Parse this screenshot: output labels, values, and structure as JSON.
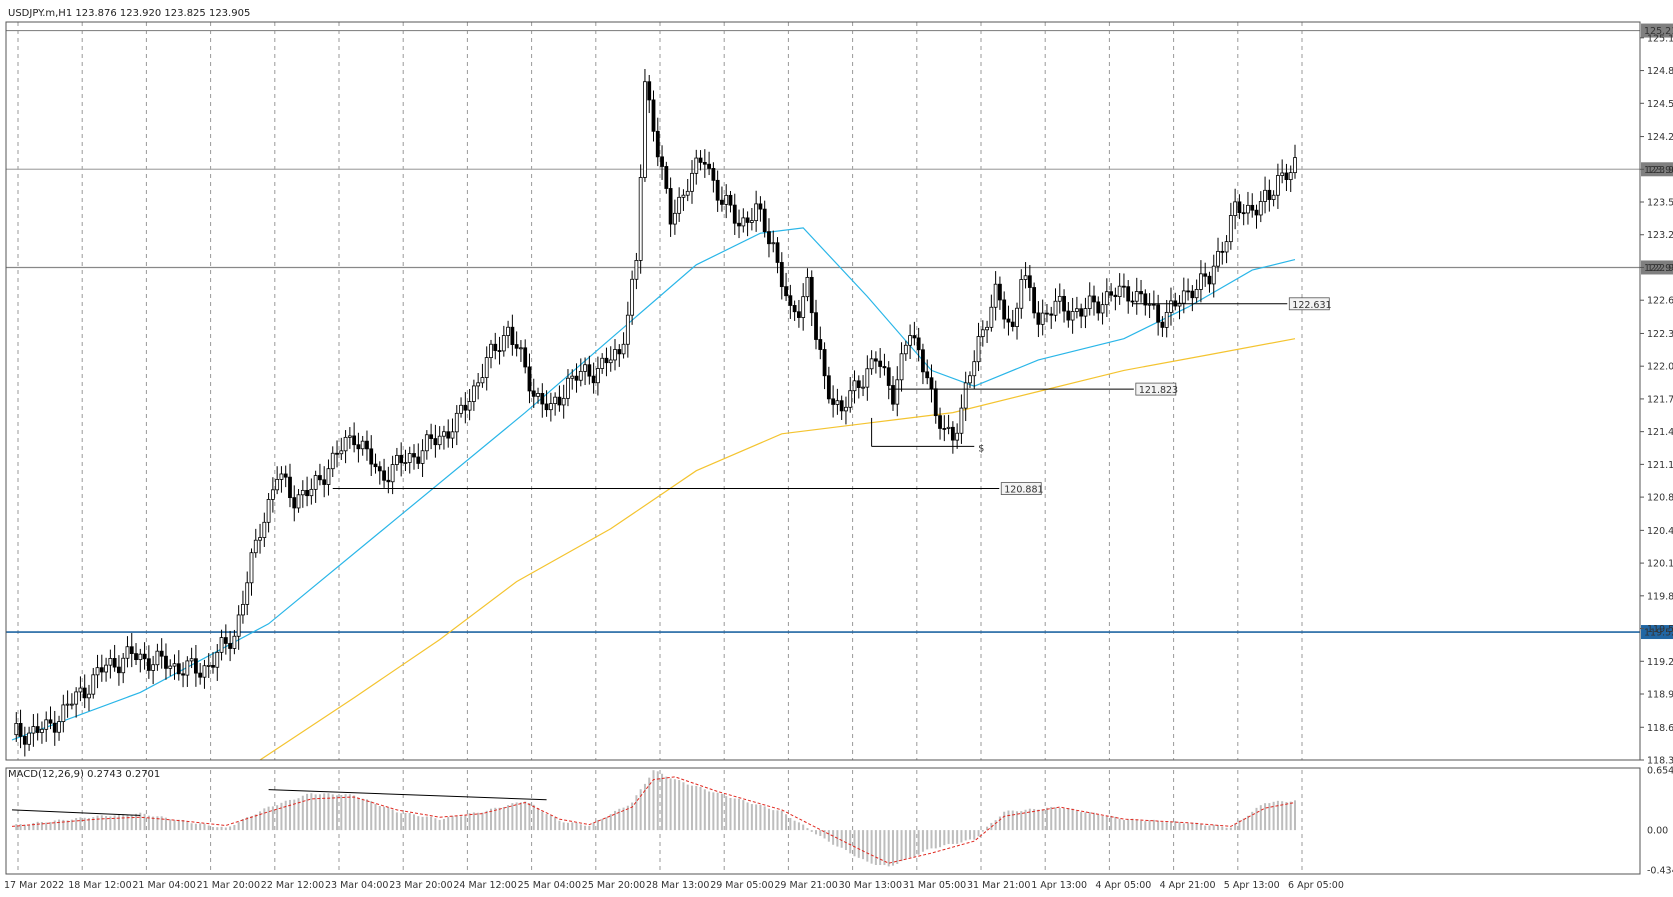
{
  "window": {
    "symbol_line": "USDJPY.m,H1  123.876 123.920 123.825 123.905"
  },
  "chart_data": {
    "type": "candlestick",
    "symbol": "USDJPY.m",
    "timeframe": "H1",
    "ohlc_header": {
      "open": 123.876,
      "high": 123.92,
      "low": 123.825,
      "close": 123.905
    },
    "ylim": [
      118.31,
      125.3
    ],
    "price_ticks": [
      "125.150",
      "124.840",
      "124.530",
      "124.215",
      "123.905",
      "123.595",
      "123.285",
      "122.975",
      "122.665",
      "122.350",
      "122.040",
      "121.730",
      "121.420",
      "121.110",
      "120.800",
      "120.485",
      "120.175",
      "119.865",
      "119.555",
      "119.245",
      "118.935",
      "118.620",
      "118.310"
    ],
    "time_labels": [
      "17 Mar 2022",
      "18 Mar 12:00",
      "21 Mar 04:00",
      "21 Mar 20:00",
      "22 Mar 12:00",
      "23 Mar 04:00",
      "23 Mar 20:00",
      "24 Mar 12:00",
      "25 Mar 04:00",
      "25 Mar 20:00",
      "28 Mar 13:00",
      "29 Mar 05:00",
      "29 Mar 21:00",
      "30 Mar 13:00",
      "31 Mar 05:00",
      "31 Mar 21:00",
      "1 Apr 13:00",
      "4 Apr 05:00",
      "4 Apr 21:00",
      "5 Apr 13:00",
      "6 Apr 05:00"
    ],
    "close_path": [
      [
        0,
        118.55
      ],
      [
        8,
        118.6
      ],
      [
        15,
        118.9
      ],
      [
        22,
        119.2
      ],
      [
        28,
        119.3
      ],
      [
        33,
        119.25
      ],
      [
        38,
        119.2
      ],
      [
        44,
        119.15
      ],
      [
        48,
        119.3
      ],
      [
        52,
        119.5
      ],
      [
        58,
        120.5
      ],
      [
        62,
        121.0
      ],
      [
        66,
        120.8
      ],
      [
        70,
        120.85
      ],
      [
        74,
        121.1
      ],
      [
        80,
        121.4
      ],
      [
        86,
        121.0
      ],
      [
        92,
        121.15
      ],
      [
        96,
        121.25
      ],
      [
        104,
        121.5
      ],
      [
        110,
        122.0
      ],
      [
        116,
        122.4
      ],
      [
        118,
        122.2
      ],
      [
        122,
        121.8
      ],
      [
        126,
        121.6
      ],
      [
        130,
        121.9
      ],
      [
        136,
        122.0
      ],
      [
        142,
        122.15
      ],
      [
        146,
        123.0
      ],
      [
        148,
        124.7
      ],
      [
        150,
        124.35
      ],
      [
        154,
        123.4
      ],
      [
        158,
        123.8
      ],
      [
        162,
        124.0
      ],
      [
        166,
        123.6
      ],
      [
        170,
        123.4
      ],
      [
        174,
        123.5
      ],
      [
        178,
        123.2
      ],
      [
        182,
        122.5
      ],
      [
        184,
        122.6
      ],
      [
        186,
        122.85
      ],
      [
        188,
        122.3
      ],
      [
        190,
        121.9
      ],
      [
        194,
        121.6
      ],
      [
        198,
        121.9
      ],
      [
        202,
        122.1
      ],
      [
        206,
        121.8
      ],
      [
        210,
        122.35
      ],
      [
        214,
        122.0
      ],
      [
        216,
        121.5
      ],
      [
        220,
        121.4
      ],
      [
        222,
        121.6
      ],
      [
        226,
        122.3
      ],
      [
        230,
        122.7
      ],
      [
        234,
        122.4
      ],
      [
        236,
        122.9
      ],
      [
        240,
        122.5
      ],
      [
        244,
        122.6
      ],
      [
        250,
        122.55
      ],
      [
        256,
        122.7
      ],
      [
        262,
        122.75
      ],
      [
        266,
        122.6
      ],
      [
        268,
        122.5
      ],
      [
        272,
        122.6
      ],
      [
        276,
        122.8
      ],
      [
        280,
        122.85
      ],
      [
        282,
        123.1
      ],
      [
        286,
        123.5
      ],
      [
        290,
        123.55
      ],
      [
        294,
        123.6
      ],
      [
        296,
        123.85
      ],
      [
        300,
        123.905
      ]
    ],
    "series": [
      {
        "name": "MA (blue)",
        "color": "#2ab6e8",
        "values": [
          [
            0,
            118.5
          ],
          [
            30,
            118.95
          ],
          [
            60,
            119.6
          ],
          [
            90,
            120.6
          ],
          [
            120,
            121.6
          ],
          [
            140,
            122.3
          ],
          [
            160,
            123.0
          ],
          [
            175,
            123.3
          ],
          [
            185,
            123.35
          ],
          [
            200,
            122.7
          ],
          [
            215,
            122.0
          ],
          [
            225,
            121.85
          ],
          [
            240,
            122.1
          ],
          [
            260,
            122.3
          ],
          [
            275,
            122.6
          ],
          [
            290,
            122.95
          ],
          [
            300,
            123.05
          ]
        ]
      },
      {
        "name": "MA (yellow)",
        "color": "#f4c430",
        "values": [
          [
            58,
            118.31
          ],
          [
            80,
            118.9
          ],
          [
            100,
            119.45
          ],
          [
            118,
            120.0
          ],
          [
            140,
            120.5
          ],
          [
            160,
            121.05
          ],
          [
            180,
            121.4
          ],
          [
            200,
            121.5
          ],
          [
            220,
            121.6
          ],
          [
            240,
            121.8
          ],
          [
            260,
            122.0
          ],
          [
            280,
            122.15
          ],
          [
            300,
            122.3
          ]
        ]
      }
    ],
    "horizontal_levels": [
      {
        "price": 125.219,
        "label": "125.219",
        "color": "#888888"
      },
      {
        "price": 123.905,
        "label": "123.905",
        "color": "#aaaaaa"
      },
      {
        "price": 122.975,
        "label": "122.975",
        "color": "#888888"
      },
      {
        "price": 119.522,
        "label": "119.522",
        "color": "#2166a3"
      }
    ],
    "segment_levels": [
      {
        "price": 120.881,
        "label": "120.881"
      },
      {
        "price": 121.823,
        "label": "121.823"
      },
      {
        "price": 122.631,
        "label": "122.631"
      }
    ],
    "support_marker": {
      "price": 121.28,
      "label": "$"
    },
    "macd": {
      "label": "MACD(12,26,9) 0.2743 0.2701",
      "ylim": [
        -0.4343,
        0.6543
      ],
      "ticks": [
        "0.6543",
        "0.00",
        "-0.4343"
      ],
      "histogram": [
        [
          0,
          0.05
        ],
        [
          20,
          0.15
        ],
        [
          30,
          0.18
        ],
        [
          40,
          0.1
        ],
        [
          50,
          0.02
        ],
        [
          60,
          0.25
        ],
        [
          70,
          0.4
        ],
        [
          80,
          0.38
        ],
        [
          90,
          0.2
        ],
        [
          100,
          0.12
        ],
        [
          110,
          0.2
        ],
        [
          120,
          0.32
        ],
        [
          128,
          0.1
        ],
        [
          135,
          0.05
        ],
        [
          145,
          0.3
        ],
        [
          150,
          0.65
        ],
        [
          155,
          0.55
        ],
        [
          165,
          0.4
        ],
        [
          180,
          0.2
        ],
        [
          190,
          -0.1
        ],
        [
          200,
          -0.35
        ],
        [
          205,
          -0.4
        ],
        [
          215,
          -0.2
        ],
        [
          225,
          -0.1
        ],
        [
          232,
          0.2
        ],
        [
          245,
          0.25
        ],
        [
          260,
          0.12
        ],
        [
          275,
          0.08
        ],
        [
          285,
          0.03
        ],
        [
          293,
          0.3
        ],
        [
          300,
          0.32
        ]
      ],
      "signal": [
        [
          0,
          0.04
        ],
        [
          20,
          0.12
        ],
        [
          30,
          0.14
        ],
        [
          40,
          0.1
        ],
        [
          50,
          0.05
        ],
        [
          60,
          0.2
        ],
        [
          70,
          0.34
        ],
        [
          80,
          0.36
        ],
        [
          90,
          0.22
        ],
        [
          100,
          0.14
        ],
        [
          110,
          0.18
        ],
        [
          120,
          0.3
        ],
        [
          128,
          0.12
        ],
        [
          135,
          0.06
        ],
        [
          145,
          0.25
        ],
        [
          150,
          0.55
        ],
        [
          155,
          0.58
        ],
        [
          165,
          0.42
        ],
        [
          180,
          0.22
        ],
        [
          190,
          -0.02
        ],
        [
          200,
          -0.25
        ],
        [
          205,
          -0.36
        ],
        [
          215,
          -0.25
        ],
        [
          225,
          -0.12
        ],
        [
          232,
          0.15
        ],
        [
          245,
          0.25
        ],
        [
          260,
          0.12
        ],
        [
          275,
          0.08
        ],
        [
          285,
          0.04
        ],
        [
          293,
          0.24
        ],
        [
          300,
          0.3
        ]
      ],
      "divergence_lines": [
        [
          [
            0,
            0.22
          ],
          [
            30,
            0.16
          ]
        ],
        [
          [
            60,
            0.44
          ],
          [
            125,
            0.33
          ]
        ]
      ]
    }
  }
}
